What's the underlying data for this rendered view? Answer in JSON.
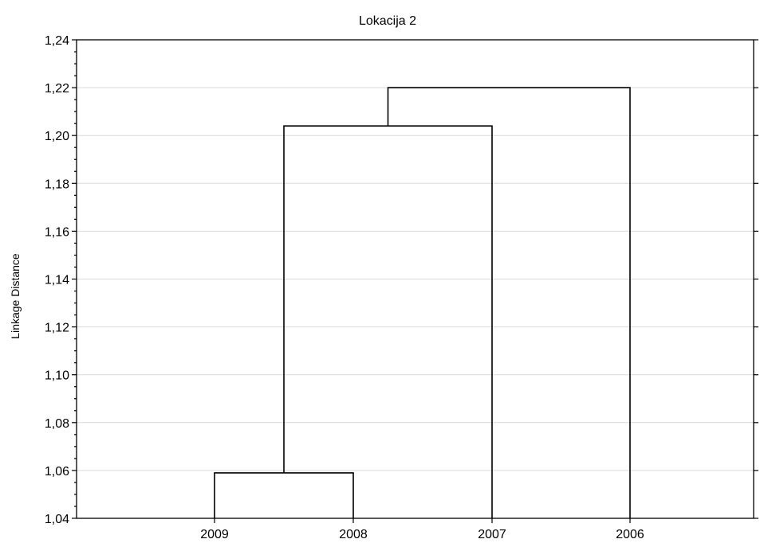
{
  "chart_data": {
    "type": "dendrogram",
    "title": "Lokacija 2",
    "xlabel": "",
    "ylabel": "Linkage Distance",
    "ylim": [
      1.04,
      1.24
    ],
    "yticks": [
      "1,04",
      "1,06",
      "1,08",
      "1,10",
      "1,12",
      "1,14",
      "1,16",
      "1,18",
      "1,20",
      "1,22",
      "1,24"
    ],
    "leaves": [
      "2009",
      "2008",
      "2007",
      "2006"
    ],
    "merges": [
      {
        "left": "2009",
        "right": "2008",
        "distance": 1.059
      },
      {
        "left": "2009+2008",
        "right": "2007",
        "distance": 1.204
      },
      {
        "left": "2009+2008+2007",
        "right": "2006",
        "distance": 1.22
      }
    ],
    "grid": true
  }
}
